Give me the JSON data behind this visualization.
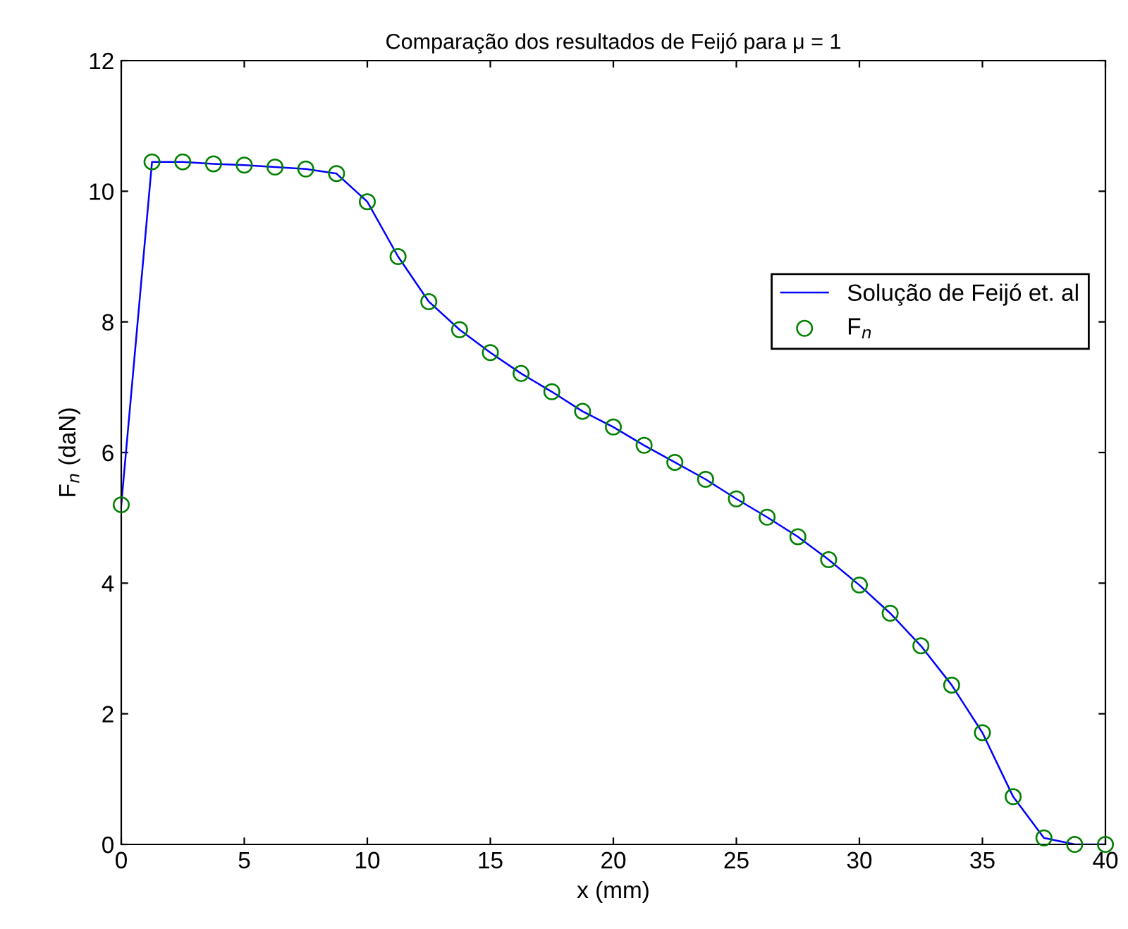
{
  "chart_data": {
    "type": "line",
    "title": "Comparação dos resultados de Feijó para μ = 1",
    "xlabel": "x (mm)",
    "ylabel": "F$_{n}$ (daN)",
    "x": [
      0,
      1.25,
      2.5,
      3.75,
      5,
      6.25,
      7.5,
      8.75,
      10,
      11.25,
      12.5,
      13.75,
      15,
      16.25,
      17.5,
      18.75,
      20,
      21.25,
      22.5,
      23.75,
      25,
      26.25,
      27.5,
      28.75,
      30,
      31.25,
      32.5,
      33.75,
      35,
      36.25,
      37.5,
      38.75,
      40
    ],
    "series": [
      {
        "name": "Solução de Feijó et. al",
        "color": "#0000ff",
        "marker": "none",
        "values": [
          5.2,
          10.45,
          10.45,
          10.42,
          10.4,
          10.37,
          10.34,
          10.27,
          9.84,
          9.0,
          8.31,
          7.88,
          7.53,
          7.21,
          6.93,
          6.63,
          6.39,
          6.11,
          5.85,
          5.59,
          5.29,
          5.01,
          4.71,
          4.36,
          3.97,
          3.54,
          3.04,
          2.44,
          1.71,
          0.73,
          0.1,
          0,
          0
        ]
      },
      {
        "name": "F$_{n}$",
        "type": "scatter",
        "color": "#008000",
        "marker": "circle",
        "values": [
          5.2,
          10.45,
          10.45,
          10.42,
          10.4,
          10.37,
          10.34,
          10.27,
          9.84,
          9.0,
          8.31,
          7.88,
          7.53,
          7.21,
          6.93,
          6.63,
          6.39,
          6.11,
          5.85,
          5.59,
          5.29,
          5.01,
          4.71,
          4.36,
          3.97,
          3.54,
          3.04,
          2.44,
          1.71,
          0.73,
          0.1,
          0,
          0
        ]
      }
    ],
    "xlim": [
      0,
      40
    ],
    "xticks": [
      0,
      5,
      10,
      15,
      20,
      25,
      30,
      35,
      40
    ],
    "ylim": [
      0,
      12
    ],
    "yticks": [
      0,
      2,
      4,
      6,
      8,
      10,
      12
    ],
    "grid": false,
    "legend": "right"
  }
}
